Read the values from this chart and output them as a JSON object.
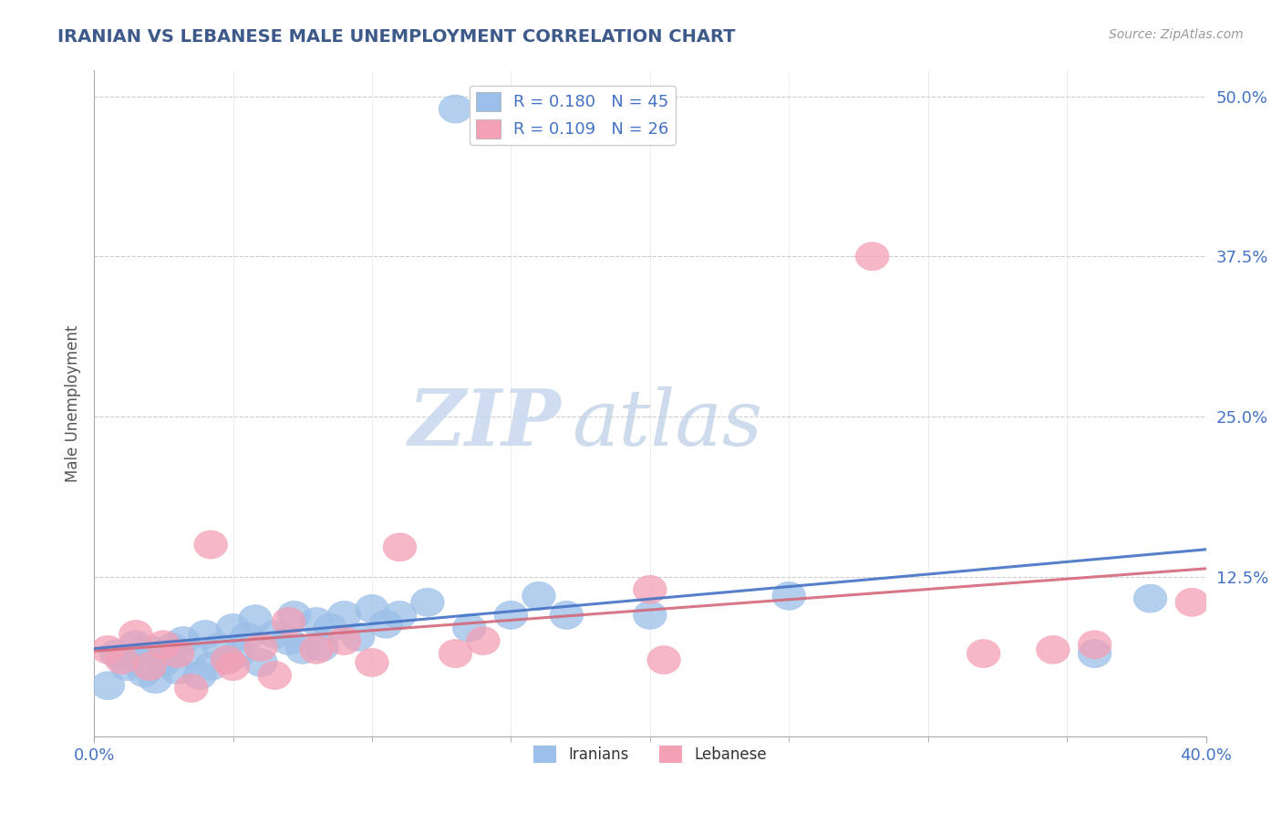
{
  "title": "IRANIAN VS LEBANESE MALE UNEMPLOYMENT CORRELATION CHART",
  "source_text": "Source: ZipAtlas.com",
  "ylabel": "Male Unemployment",
  "xlim": [
    0.0,
    0.4
  ],
  "ylim": [
    0.0,
    0.52
  ],
  "yticks": [
    0.125,
    0.25,
    0.375,
    0.5
  ],
  "ytick_labels": [
    "12.5%",
    "25.0%",
    "37.5%",
    "50.0%"
  ],
  "xtick_positions": [
    0.0,
    0.4
  ],
  "xtick_labels": [
    "0.0%",
    "40.0%"
  ],
  "iranian_color": "#9bbfe8",
  "lebanese_color": "#f4a0b5",
  "regression_iranian_color": "#4472c4",
  "regression_lebanese_color": "#d4687a",
  "r_iranian": 0.18,
  "n_iranian": 45,
  "r_lebanese": 0.109,
  "n_lebanese": 26,
  "watermark_zip": "ZIP",
  "watermark_atlas": "atlas",
  "background_color": "#ffffff",
  "iranians_x": [
    0.005,
    0.008,
    0.012,
    0.015,
    0.018,
    0.02,
    0.022,
    0.025,
    0.025,
    0.028,
    0.03,
    0.032,
    0.035,
    0.038,
    0.04,
    0.042,
    0.045,
    0.048,
    0.05,
    0.052,
    0.055,
    0.058,
    0.06,
    0.065,
    0.07,
    0.072,
    0.075,
    0.08,
    0.082,
    0.085,
    0.09,
    0.095,
    0.1,
    0.105,
    0.11,
    0.12,
    0.13,
    0.135,
    0.15,
    0.16,
    0.17,
    0.2,
    0.25,
    0.36,
    0.38
  ],
  "iranians_y": [
    0.04,
    0.065,
    0.055,
    0.072,
    0.05,
    0.068,
    0.045,
    0.062,
    0.058,
    0.07,
    0.052,
    0.075,
    0.065,
    0.048,
    0.08,
    0.055,
    0.07,
    0.06,
    0.085,
    0.065,
    0.078,
    0.092,
    0.058,
    0.08,
    0.075,
    0.095,
    0.068,
    0.09,
    0.07,
    0.085,
    0.095,
    0.078,
    0.1,
    0.088,
    0.095,
    0.105,
    0.49,
    0.085,
    0.095,
    0.11,
    0.095,
    0.095,
    0.11,
    0.065,
    0.108
  ],
  "lebanese_x": [
    0.005,
    0.01,
    0.015,
    0.02,
    0.025,
    0.03,
    0.035,
    0.042,
    0.048,
    0.05,
    0.06,
    0.065,
    0.07,
    0.08,
    0.09,
    0.1,
    0.11,
    0.13,
    0.14,
    0.2,
    0.205,
    0.28,
    0.32,
    0.345,
    0.36,
    0.395
  ],
  "lebanese_y": [
    0.068,
    0.06,
    0.08,
    0.055,
    0.072,
    0.065,
    0.038,
    0.15,
    0.06,
    0.055,
    0.07,
    0.048,
    0.09,
    0.068,
    0.075,
    0.058,
    0.148,
    0.065,
    0.075,
    0.115,
    0.06,
    0.375,
    0.065,
    0.068,
    0.072,
    0.105
  ]
}
